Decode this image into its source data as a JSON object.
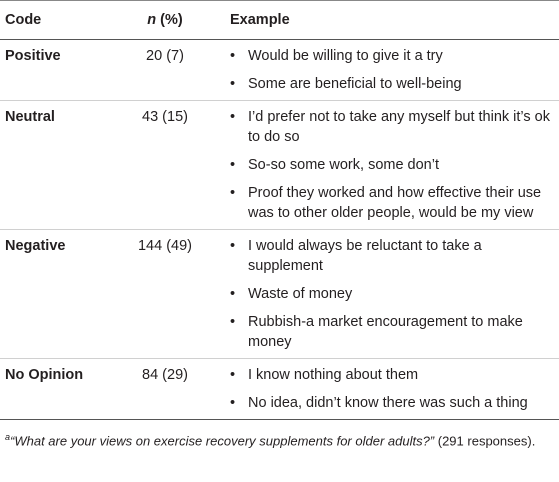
{
  "table": {
    "header": {
      "code": "Code",
      "n_label": [
        "n",
        " (%)"
      ],
      "example": "Example"
    },
    "rows": [
      {
        "code": "Positive",
        "n": "20 (7)",
        "examples": [
          "Would be willing to give it a try",
          "Some are beneficial to well-being"
        ]
      },
      {
        "code": "Neutral",
        "n": "43 (15)",
        "examples": [
          "I’d prefer not to take any myself but think it’s ok to do so",
          "So-so some work, some don’t",
          "Proof they worked and how effective their use was to other older people, would be my view"
        ]
      },
      {
        "code": "Negative",
        "n": "144 (49)",
        "examples": [
          "I would always be reluctant to take a supplement",
          "Waste of money",
          "Rubbish-a market encouragement to make money"
        ]
      },
      {
        "code": "No Opinion",
        "n": "84 (29)",
        "examples": [
          "I know nothing about them",
          "No idea, didn’t know there was such a thing"
        ]
      }
    ],
    "footnote": {
      "marker": "a",
      "question": "“What are your views on exercise recovery supplements for older adults?”",
      "rest": " (291 responses)."
    }
  }
}
